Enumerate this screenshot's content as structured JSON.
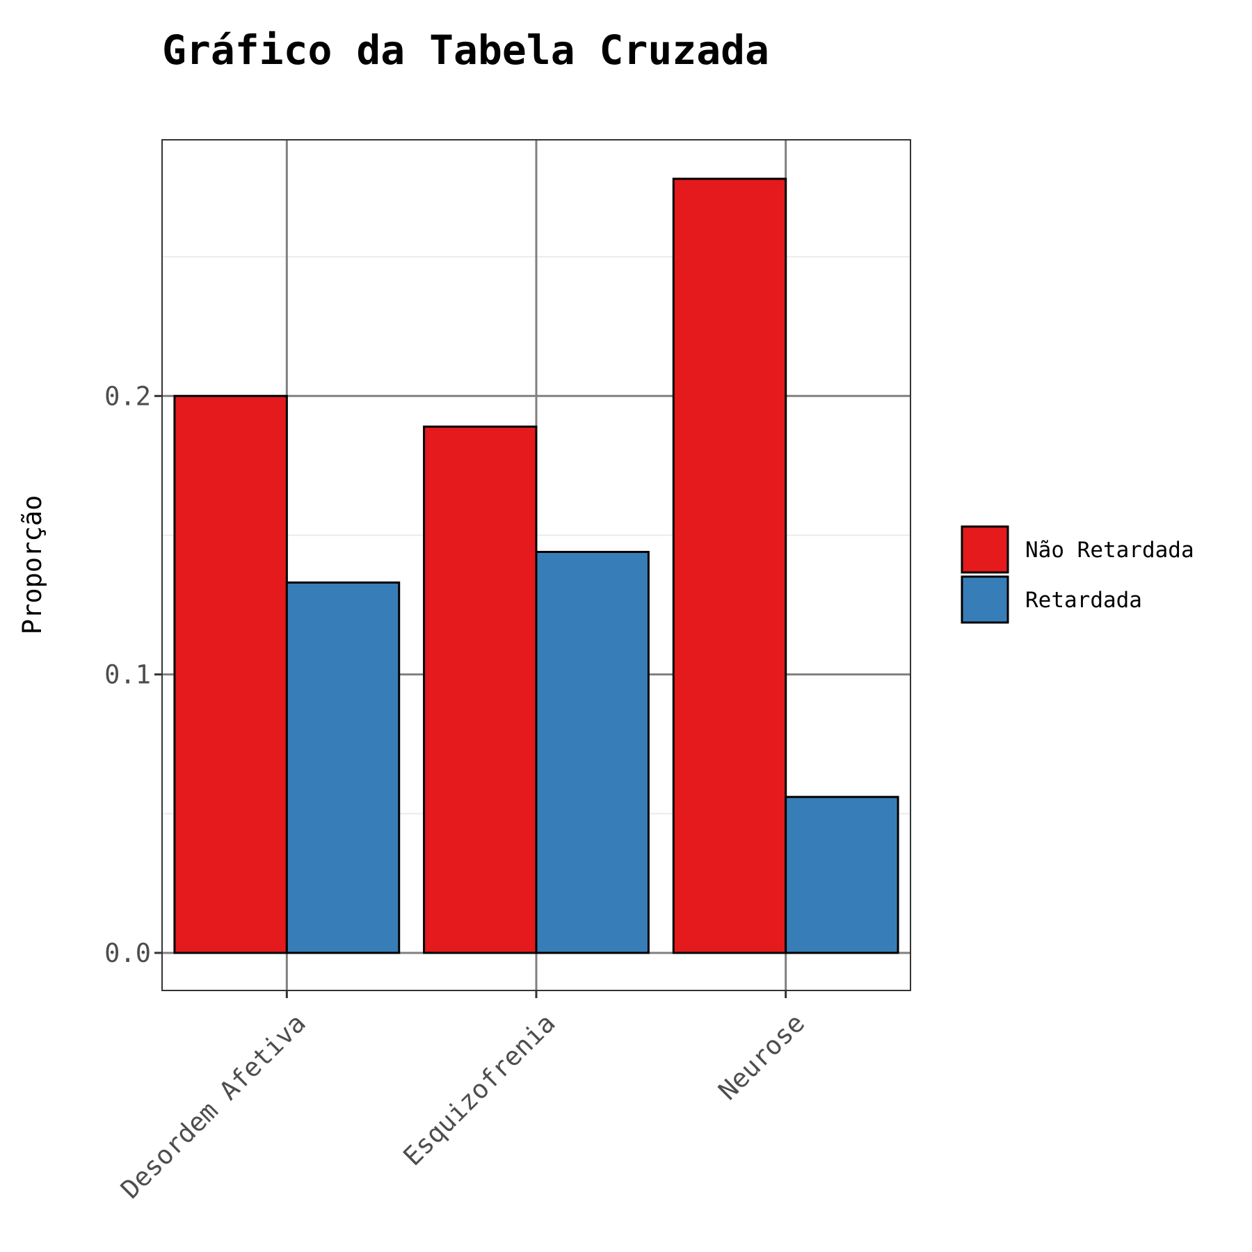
{
  "chart_data": {
    "type": "bar",
    "title": "Gráfico da Tabela Cruzada",
    "ylabel": "Proporção",
    "xlabel": "",
    "categories": [
      "Desordem Afetiva",
      "Esquizofrenia",
      "Neurose"
    ],
    "series": [
      {
        "name": "Não Retardada",
        "color": "#e41a1c",
        "values": [
          0.2,
          0.189,
          0.278
        ]
      },
      {
        "name": "Retardada",
        "color": "#377eb8",
        "values": [
          0.133,
          0.144,
          0.056
        ]
      }
    ],
    "ylim": [
      -0.0135,
      0.292
    ],
    "y_ticks": [
      {
        "value": 0.0,
        "label": "0.0"
      },
      {
        "value": 0.1,
        "label": "0.1"
      },
      {
        "value": 0.2,
        "label": "0.2"
      }
    ],
    "y_minor_ticks": [
      0.05,
      0.15,
      0.25
    ],
    "grid": true,
    "legend_position": "right"
  }
}
